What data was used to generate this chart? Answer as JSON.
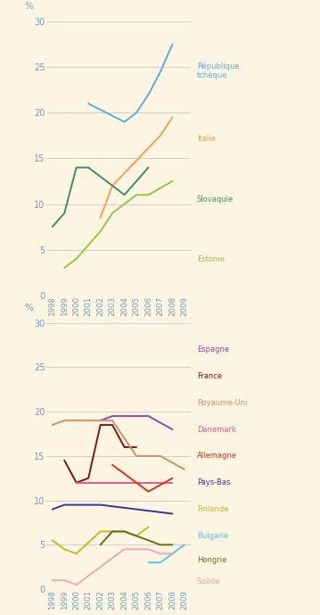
{
  "years": [
    1998,
    1999,
    2000,
    2001,
    2002,
    2003,
    2004,
    2005,
    2006,
    2007,
    2008,
    2009
  ],
  "background_color": "#fdf5e2",
  "grid_color": "#c8c8c8",
  "axis_color": "#6a9dbf",
  "tick_color": "#6a9dbf",
  "chart1": {
    "series": [
      {
        "label": "République\ntchèque",
        "color": "#5bafd6",
        "label_color": "#5bafd6",
        "points": [
          [
            2001,
            21.0
          ],
          [
            2004,
            19.0
          ],
          [
            2005,
            20.0
          ],
          [
            2006,
            22.0
          ],
          [
            2007,
            24.5
          ],
          [
            2008,
            27.5
          ]
        ]
      },
      {
        "label": "Italie",
        "color": "#f5a050",
        "label_color": "#f5a050",
        "points": [
          [
            2002,
            8.5
          ],
          [
            2003,
            12.0
          ],
          [
            2007,
            17.5
          ],
          [
            2008,
            19.5
          ]
        ]
      },
      {
        "label": "Slovaquie",
        "color": "#3a8c6a",
        "label_color": "#3a8c6a",
        "points": [
          [
            1998,
            7.5
          ],
          [
            1999,
            9.0
          ],
          [
            2000,
            14.0
          ],
          [
            2001,
            14.0
          ],
          [
            2002,
            13.0
          ],
          [
            2003,
            12.0
          ],
          [
            2004,
            11.0
          ],
          [
            2006,
            14.0
          ]
        ]
      },
      {
        "label": "Estonie",
        "color": "#90c840",
        "label_color": "#90c840",
        "points": [
          [
            1999,
            3.0
          ],
          [
            2000,
            4.0
          ],
          [
            2002,
            7.0
          ],
          [
            2003,
            9.0
          ],
          [
            2004,
            10.0
          ],
          [
            2005,
            11.0
          ],
          [
            2006,
            11.0
          ],
          [
            2008,
            12.5
          ]
        ]
      }
    ],
    "ylim": [
      0,
      30
    ],
    "yticks": [
      0,
      5,
      10,
      15,
      20,
      25,
      30
    ]
  },
  "chart2": {
    "series": [
      {
        "label": "Espagne",
        "color": "#8e44ad",
        "label_color": "#8e44ad",
        "points": [
          [
            2002,
            19.0
          ],
          [
            2003,
            19.5
          ],
          [
            2004,
            19.5
          ],
          [
            2006,
            19.5
          ],
          [
            2008,
            18.0
          ]
        ]
      },
      {
        "label": "France",
        "color": "#7b1515",
        "label_color": "#7b1515",
        "points": [
          [
            1999,
            14.5
          ],
          [
            2000,
            12.0
          ],
          [
            2001,
            12.5
          ],
          [
            2002,
            18.5
          ],
          [
            2003,
            18.5
          ],
          [
            2004,
            16.0
          ],
          [
            2005,
            16.0
          ]
        ]
      },
      {
        "label": "Royaume-Uni",
        "color": "#c8956a",
        "label_color": "#c8956a",
        "points": [
          [
            1998,
            18.5
          ],
          [
            1999,
            19.0
          ],
          [
            2003,
            19.0
          ],
          [
            2005,
            15.0
          ],
          [
            2007,
            15.0
          ],
          [
            2009,
            13.5
          ]
        ]
      },
      {
        "label": "Danemark",
        "color": "#e05890",
        "label_color": "#e05890",
        "points": [
          [
            2000,
            12.0
          ],
          [
            2001,
            12.0
          ],
          [
            2002,
            12.0
          ],
          [
            2003,
            12.0
          ],
          [
            2006,
            12.0
          ],
          [
            2008,
            12.0
          ]
        ]
      },
      {
        "label": "Allemagne",
        "color": "#e03020",
        "label_color": "#e03020",
        "points": [
          [
            2003,
            14.0
          ],
          [
            2005,
            12.0
          ],
          [
            2006,
            11.0
          ],
          [
            2008,
            12.5
          ]
        ]
      },
      {
        "label": "Pays-Bas",
        "color": "#3535a0",
        "label_color": "#3535a0",
        "points": [
          [
            1998,
            9.0
          ],
          [
            1999,
            9.5
          ],
          [
            2000,
            9.5
          ],
          [
            2001,
            9.5
          ],
          [
            2002,
            9.5
          ],
          [
            2008,
            8.5
          ]
        ]
      },
      {
        "label": "Finlande",
        "color": "#c8b820",
        "label_color": "#c8b820",
        "points": [
          [
            1998,
            5.5
          ],
          [
            1999,
            4.5
          ],
          [
            2000,
            4.0
          ],
          [
            2002,
            6.5
          ],
          [
            2003,
            6.5
          ],
          [
            2004,
            6.5
          ],
          [
            2005,
            6.0
          ],
          [
            2006,
            7.0
          ]
        ]
      },
      {
        "label": "Bulgarie",
        "color": "#50c8e0",
        "label_color": "#50c8e0",
        "points": [
          [
            2006,
            3.0
          ],
          [
            2007,
            3.0
          ],
          [
            2008,
            4.0
          ],
          [
            2009,
            5.0
          ]
        ]
      },
      {
        "label": "Hongrie",
        "color": "#6a6a20",
        "label_color": "#6a6a20",
        "points": [
          [
            2002,
            5.0
          ],
          [
            2003,
            6.5
          ],
          [
            2004,
            6.5
          ],
          [
            2005,
            6.0
          ],
          [
            2007,
            5.0
          ],
          [
            2008,
            5.0
          ]
        ]
      },
      {
        "label": "Suède",
        "color": "#f0a8b8",
        "label_color": "#f0a8b8",
        "points": [
          [
            1998,
            1.0
          ],
          [
            1999,
            1.0
          ],
          [
            2000,
            0.5
          ],
          [
            2004,
            4.5
          ],
          [
            2005,
            4.5
          ],
          [
            2006,
            4.5
          ],
          [
            2007,
            4.0
          ],
          [
            2008,
            4.0
          ]
        ]
      }
    ],
    "ylim": [
      0,
      30
    ],
    "yticks": [
      0,
      5,
      10,
      15,
      20,
      25,
      30
    ]
  }
}
